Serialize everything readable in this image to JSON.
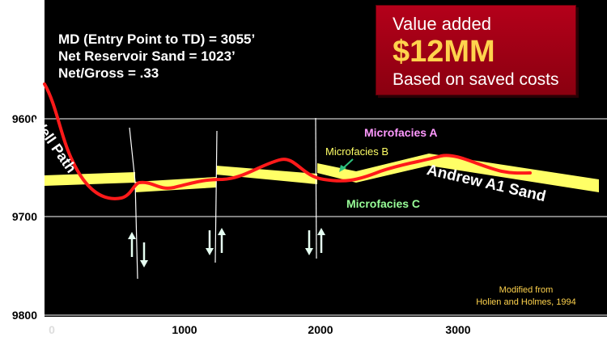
{
  "info": {
    "line1": "MD (Entry Point to TD) = 3055’",
    "line2": "Net Reservoir Sand = 1023’",
    "line3": "Net/Gross = .33"
  },
  "value_box": {
    "line1": "Value added",
    "line2": "$12MM",
    "line3": "Based on saved costs"
  },
  "labels": {
    "well_path": "Well Path",
    "microfacies_a": "Microfacies A",
    "microfacies_b": "Microfacies B",
    "microfacies_c": "Microfacies C",
    "sand": "Andrew A1 Sand"
  },
  "credit": {
    "line1": "Modified from",
    "line2": "Holien and Holmes, 1994"
  },
  "axes": {
    "y_ticks": [
      "9600",
      "9700",
      "9800"
    ],
    "x_ticks": [
      "0",
      "1000",
      "2000",
      "3000"
    ]
  },
  "colors": {
    "background": "#000000",
    "sand": "#ffff66",
    "well_path": "#ff1a1a",
    "value_box": "#a0001a",
    "value_text": "#ffd34d",
    "microfacies_a": "#ff99ff",
    "microfacies_b": "#ffff66",
    "microfacies_c": "#99ff99",
    "fault": "#ffffff",
    "arrow": "#e6fff2"
  }
}
